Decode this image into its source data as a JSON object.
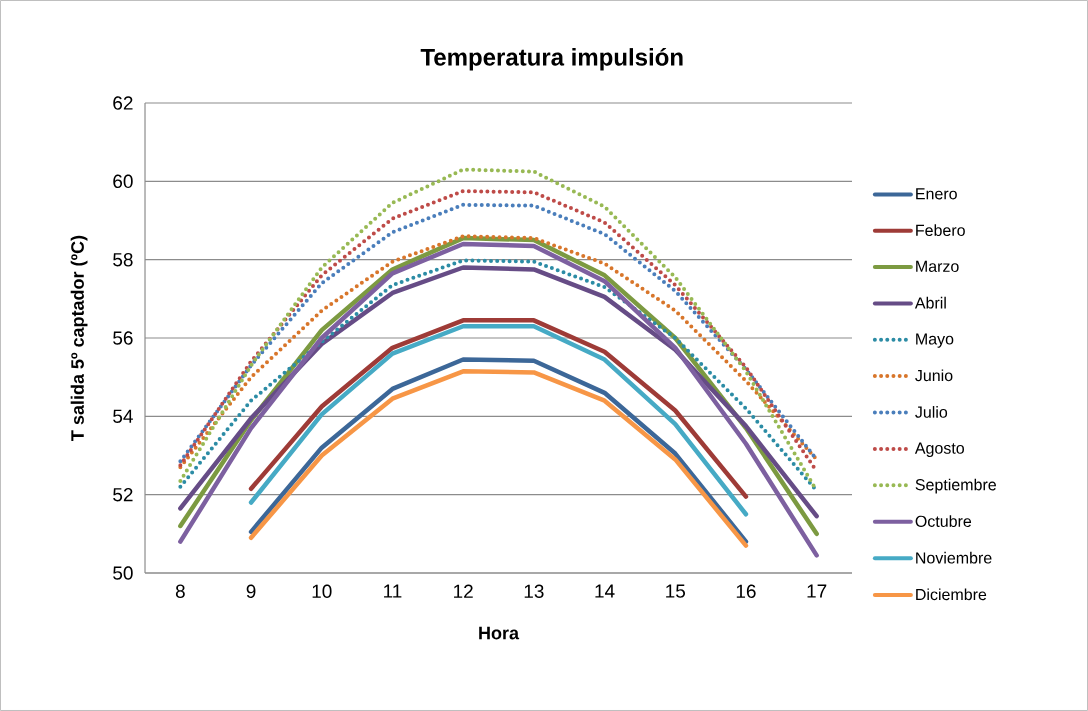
{
  "chart_data": {
    "type": "line",
    "title": "Temperatura impulsión",
    "xlabel": "Hora",
    "ylabel": "T salida 5º captador (ºC)",
    "categories": [
      "8",
      "9",
      "10",
      "11",
      "12",
      "13",
      "14",
      "15",
      "16",
      "17"
    ],
    "ylim": [
      50,
      62
    ],
    "yticks": [
      50,
      52,
      54,
      56,
      58,
      60,
      62
    ],
    "grid": "y",
    "legend": "right",
    "marker": "none",
    "series": [
      {
        "name": "Enero",
        "color": "#3c6798",
        "line_style": "solid",
        "values": [
          null,
          51.05,
          53.2,
          54.7,
          55.45,
          55.42,
          54.6,
          53.05,
          50.8,
          null
        ]
      },
      {
        "name": "Febero",
        "color": "#9e3b37",
        "line_style": "solid",
        "values": [
          null,
          52.15,
          54.25,
          55.75,
          56.45,
          56.45,
          55.65,
          54.15,
          51.95,
          null
        ]
      },
      {
        "name": "Marzo",
        "color": "#7c9a41",
        "line_style": "solid",
        "values": [
          51.2,
          53.9,
          56.2,
          57.75,
          58.55,
          58.5,
          57.6,
          56.0,
          53.7,
          51.0
        ]
      },
      {
        "name": "Abril",
        "color": "#664c86",
        "line_style": "solid",
        "values": [
          51.65,
          53.95,
          55.85,
          57.15,
          57.8,
          57.75,
          57.05,
          55.7,
          53.75,
          51.45
        ]
      },
      {
        "name": "Mayo",
        "color": "#2c8ca5",
        "line_style": "dotted",
        "values": [
          52.2,
          54.4,
          55.9,
          57.35,
          57.98,
          57.95,
          57.3,
          56.0,
          54.2,
          52.1
        ]
      },
      {
        "name": "Junio",
        "color": "#d8762b",
        "line_style": "dotted",
        "values": [
          52.7,
          55.0,
          56.7,
          57.95,
          58.6,
          58.55,
          57.9,
          56.7,
          54.9,
          52.9
        ]
      },
      {
        "name": "Julio",
        "color": "#4a7ebb",
        "line_style": "dotted",
        "values": [
          52.85,
          55.3,
          57.4,
          58.7,
          59.4,
          59.38,
          58.65,
          57.2,
          55.2,
          52.9
        ]
      },
      {
        "name": "Agosto",
        "color": "#be4b48",
        "line_style": "dotted",
        "values": [
          52.75,
          55.4,
          57.6,
          59.05,
          59.75,
          59.72,
          58.95,
          57.35,
          55.25,
          52.6
        ]
      },
      {
        "name": "Septiembre",
        "color": "#98b954",
        "line_style": "dotted",
        "values": [
          52.35,
          55.3,
          57.8,
          59.45,
          60.3,
          60.25,
          59.35,
          57.55,
          55.15,
          52.1
        ]
      },
      {
        "name": "Octubre",
        "color": "#7d60a0",
        "line_style": "solid",
        "values": [
          50.8,
          53.7,
          56.0,
          57.65,
          58.4,
          58.35,
          57.45,
          55.75,
          53.3,
          50.45
        ]
      },
      {
        "name": "Noviembre",
        "color": "#46aac5",
        "line_style": "solid",
        "values": [
          null,
          51.8,
          54.05,
          55.6,
          56.3,
          56.3,
          55.45,
          53.8,
          51.5,
          null
        ]
      },
      {
        "name": "Diciembre",
        "color": "#f79646",
        "line_style": "solid",
        "values": [
          null,
          50.9,
          53.0,
          54.45,
          55.15,
          55.12,
          54.4,
          52.9,
          50.7,
          null
        ]
      }
    ]
  }
}
